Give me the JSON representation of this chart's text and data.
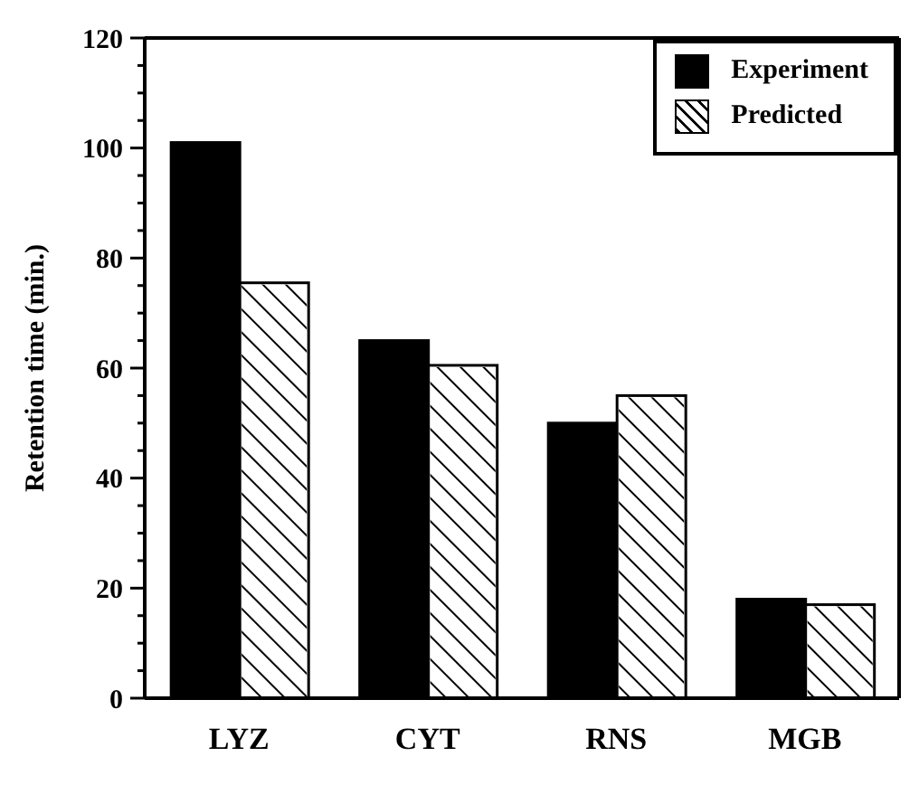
{
  "chart_data": {
    "type": "bar",
    "ylabel": "Retention time (min.)",
    "categories": [
      "LYZ",
      "CYT",
      "RNS",
      "MGB"
    ],
    "series": [
      {
        "name": "Experiment",
        "color": "#000000",
        "values": [
          101,
          65,
          50,
          18
        ]
      },
      {
        "name": "Predicted",
        "color": "#ffffff",
        "values": [
          75.5,
          60.5,
          55,
          17
        ]
      }
    ],
    "ylim": [
      0,
      120
    ],
    "yticks": [
      0,
      {
        "value": 5,
        "label": null
      },
      {
        "value": 10,
        "label": null
      },
      {
        "value": 15,
        "label": null
      },
      20,
      {
        "value": 25,
        "label": null
      },
      {
        "value": 30,
        "label": null
      },
      {
        "value": 35,
        "label": null
      },
      40,
      {
        "value": 45,
        "label": null
      },
      {
        "value": 50,
        "label": null
      },
      {
        "value": 55,
        "label": null
      },
      60,
      {
        "value": 65,
        "label": null
      },
      {
        "value": 70,
        "label": null
      },
      {
        "value": 75,
        "label": null
      },
      80,
      {
        "value": 85,
        "label": null
      },
      {
        "value": 90,
        "label": null
      },
      {
        "value": 95,
        "label": null
      },
      100,
      {
        "value": 105,
        "label": null
      },
      {
        "value": 110,
        "label": null
      },
      {
        "value": 115,
        "label": null
      },
      120
    ],
    "grid": false,
    "legend": "top right"
  }
}
